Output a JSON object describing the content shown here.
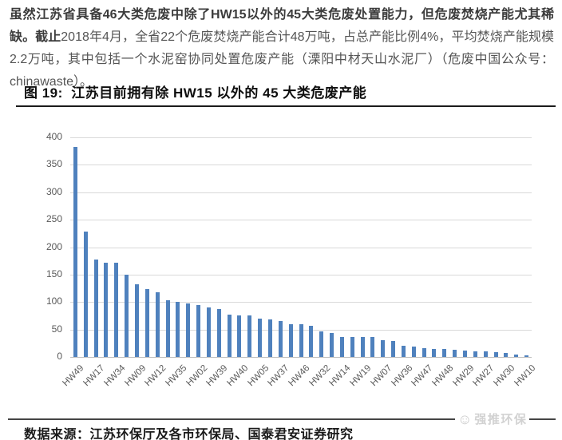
{
  "intro": {
    "bold_text": "虽然江苏省具备46大类危废中除了HW15以外的45大类危废处置能力，但危废焚烧产能尤其稀缺。截止",
    "normal_text": "2018年4月，全省22个危废焚烧产能合计48万吨，占总产能比例4%，平均焚烧产能规模2.2万吨，其中包括一个水泥窑协同处置危废产能（溧阳中材天山水泥厂）（危废中国公众号：chinawaste）。"
  },
  "figure": {
    "title": "图 19:  江苏目前拥有除 HW15 以外的 45 大类危废产能"
  },
  "chart_data": {
    "type": "bar",
    "title": "江苏目前拥有除 HW15 以外的 45 大类危废产能",
    "values": [
      383,
      228,
      177,
      172,
      172,
      150,
      132,
      123,
      118,
      103,
      100,
      98,
      94,
      90,
      88,
      77,
      76,
      76,
      70,
      68,
      65,
      59,
      59,
      57,
      47,
      44,
      37,
      37,
      36,
      36,
      30,
      29,
      21,
      19,
      16,
      15,
      14,
      13,
      11,
      10,
      10,
      9,
      8,
      5,
      3
    ],
    "x_tick_labels": [
      "HW49",
      "HW17",
      "HW34",
      "HW09",
      "HW12",
      "HW35",
      "HW02",
      "HW39",
      "HW40",
      "HW05",
      "HW37",
      "HW46",
      "HW32",
      "HW14",
      "HW19",
      "HW07",
      "HW36",
      "HW47",
      "HW48",
      "HW29",
      "HW27",
      "HW30",
      "HW10"
    ],
    "x_label_every_n_bars": 2,
    "y_axis": {
      "min": 0,
      "max": 400,
      "ticks": [
        0,
        50,
        100,
        150,
        200,
        250,
        300,
        350,
        400
      ]
    },
    "grid": true,
    "legend": "none",
    "bar_color": "#4f81bd",
    "gridline_color": "#d9d9d9"
  },
  "source": {
    "text": "数据来源：江苏环保厅及各市环保局、国泰君安证券研究"
  },
  "watermark": {
    "icon": "☺",
    "text": "强推环保"
  }
}
